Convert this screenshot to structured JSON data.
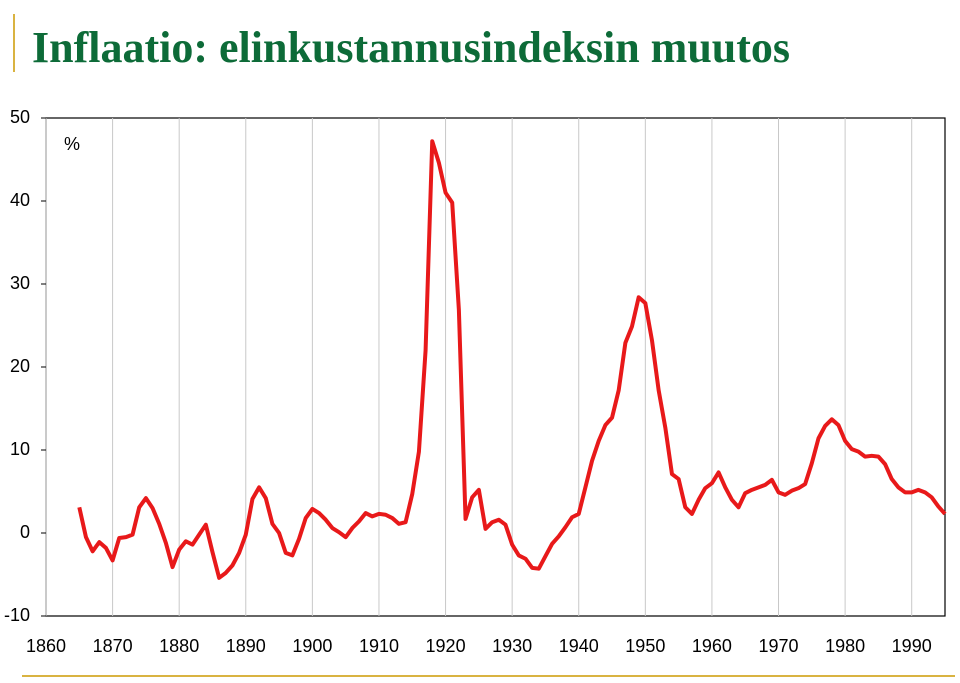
{
  "chart_data": {
    "type": "line",
    "title": "Inflaatio: elinkustannusindeksin muutos",
    "annotation": "%",
    "x": [
      1865,
      1866,
      1867,
      1868,
      1869,
      1870,
      1871,
      1872,
      1873,
      1874,
      1875,
      1876,
      1877,
      1878,
      1879,
      1880,
      1881,
      1882,
      1883,
      1884,
      1885,
      1886,
      1887,
      1888,
      1889,
      1890,
      1891,
      1892,
      1893,
      1894,
      1895,
      1896,
      1897,
      1898,
      1899,
      1900,
      1901,
      1902,
      1903,
      1904,
      1905,
      1906,
      1907,
      1908,
      1909,
      1910,
      1911,
      1912,
      1913,
      1914,
      1915,
      1916,
      1917,
      1918,
      1919,
      1920,
      1921,
      1922,
      1923,
      1924,
      1925,
      1926,
      1927,
      1928,
      1929,
      1930,
      1931,
      1932,
      1933,
      1934,
      1935,
      1936,
      1937,
      1938,
      1939,
      1940,
      1941,
      1942,
      1943,
      1944,
      1945,
      1946,
      1947,
      1948,
      1949,
      1950,
      1951,
      1952,
      1953,
      1954,
      1955,
      1956,
      1957,
      1958,
      1959,
      1960,
      1961,
      1962,
      1963,
      1964,
      1965,
      1966,
      1967,
      1968,
      1969,
      1970,
      1971,
      1972,
      1973,
      1974,
      1975,
      1976,
      1977,
      1978,
      1979,
      1980,
      1981,
      1982,
      1983,
      1984,
      1985,
      1986,
      1987,
      1988,
      1989,
      1990,
      1991,
      1992,
      1993,
      1994,
      1995
    ],
    "values": [
      3.1,
      -0.5,
      -2.2,
      -1.1,
      -1.8,
      -3.3,
      -0.6,
      -0.5,
      -0.2,
      3.1,
      4.2,
      3.0,
      1.1,
      -1.2,
      -4.1,
      -2.0,
      -1.0,
      -1.4,
      -0.2,
      1.0,
      -2.3,
      -5.4,
      -4.8,
      -3.9,
      -2.4,
      -0.2,
      4.1,
      5.5,
      4.2,
      1.1,
      0,
      -2.4,
      -2.7,
      -0.7,
      1.8,
      2.9,
      2.4,
      1.6,
      0.6,
      0.1,
      -0.5,
      0.6,
      1.4,
      2.4,
      2.0,
      2.3,
      2.2,
      1.8,
      1.1,
      1.3,
      4.7,
      9.8,
      22,
      47.2,
      44.6,
      41,
      39.8,
      26.9,
      1.7,
      4.3,
      5.2,
      0.5,
      1.3,
      1.6,
      1.0,
      -1.4,
      -2.7,
      -3.1,
      -4.2,
      -4.3,
      -2.8,
      -1.3,
      -0.4,
      0.7,
      1.9,
      2.3,
      5.5,
      8.7,
      11.1,
      13,
      13.9,
      17.2,
      22.9,
      24.9,
      28.4,
      27.7,
      23.2,
      17.2,
      12.7,
      7.1,
      6.5,
      3.1,
      2.3,
      4.0,
      5.4,
      6.0,
      7.3,
      5.5,
      4.0,
      3.1,
      4.8,
      5.2,
      5.5,
      5.8,
      6.4,
      4.9,
      4.6,
      5.1,
      5.4,
      5.9,
      8.4,
      11.4,
      12.9,
      13.7,
      13,
      11.1,
      10.1,
      9.8,
      9.2,
      9.3,
      9.2,
      8.3,
      6.5,
      5.5,
      4.9,
      4.9,
      5.2,
      4.9,
      4.3,
      3.2,
      2.3
    ],
    "color": "#e8191a",
    "xlim": [
      1860,
      1995
    ],
    "xticks": [
      1860,
      1870,
      1880,
      1890,
      1900,
      1910,
      1920,
      1930,
      1940,
      1950,
      1960,
      1970,
      1980,
      1990
    ],
    "ylim": [
      -10,
      50
    ],
    "yticks": [
      -10,
      0,
      10,
      20,
      30,
      40,
      50
    ],
    "grid": true
  }
}
